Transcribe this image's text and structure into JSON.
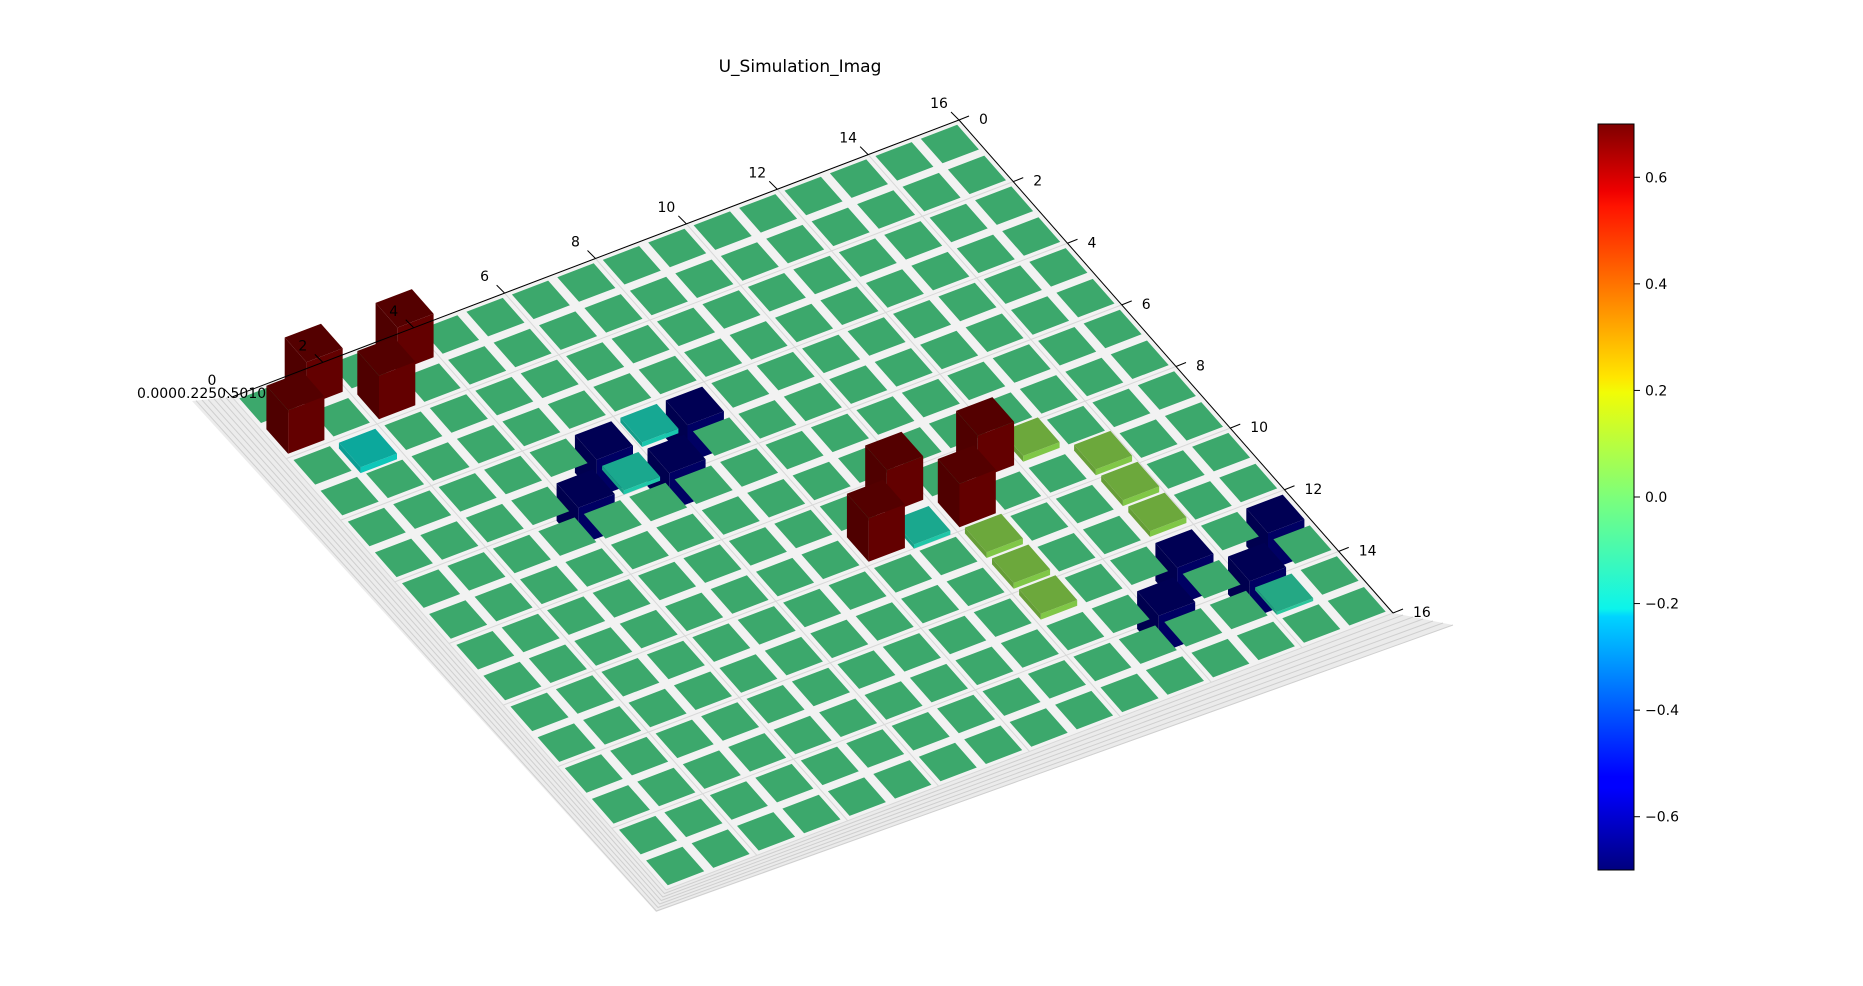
{
  "chart_data": {
    "type": "bar3d",
    "title": "U_Simulation_Imag",
    "xlabel": "",
    "ylabel": "",
    "zlabel": "",
    "grid_size": 16,
    "x_ticks": [
      "0",
      "2",
      "4",
      "6",
      "8",
      "10",
      "12",
      "14",
      "16"
    ],
    "y_ticks": [
      "0",
      "2",
      "4",
      "6",
      "8",
      "10",
      "12",
      "14",
      "16"
    ],
    "z_ticks_text": "0.0000.2250.5010",
    "colorbar": {
      "colormap": "jet",
      "vmin": -0.7,
      "vmax": 0.7,
      "ticks": [
        "0.6",
        "0.4",
        "0.2",
        "0.0",
        "−0.2",
        "−0.4",
        "−0.6"
      ],
      "tick_values": [
        0.6,
        0.4,
        0.2,
        0.0,
        -0.2,
        -0.4,
        -0.6
      ]
    },
    "baseline_value": -0.05,
    "nonzero_cells": [
      {
        "row": 0,
        "col": 1,
        "value": 0.7
      },
      {
        "row": 0,
        "col": 3,
        "value": 0.7
      },
      {
        "row": 1,
        "col": 0,
        "value": 0.7
      },
      {
        "row": 1,
        "col": 2,
        "value": 0.7
      },
      {
        "row": 2,
        "col": 1,
        "value": -0.15
      },
      {
        "row": 4,
        "col": 5,
        "value": -0.7
      },
      {
        "row": 4,
        "col": 7,
        "value": -0.7
      },
      {
        "row": 5,
        "col": 4,
        "value": -0.7
      },
      {
        "row": 5,
        "col": 6,
        "value": -0.7
      },
      {
        "row": 4,
        "col": 6,
        "value": -0.13
      },
      {
        "row": 5,
        "col": 5,
        "value": -0.12
      },
      {
        "row": 8,
        "col": 9,
        "value": 0.7
      },
      {
        "row": 8,
        "col": 11,
        "value": 0.7
      },
      {
        "row": 9,
        "col": 8,
        "value": 0.7
      },
      {
        "row": 9,
        "col": 10,
        "value": 0.7
      },
      {
        "row": 9,
        "col": 9,
        "value": -0.12
      },
      {
        "row": 8,
        "col": 12,
        "value": 0.05
      },
      {
        "row": 9,
        "col": 13,
        "value": 0.05
      },
      {
        "row": 10,
        "col": 13,
        "value": 0.05
      },
      {
        "row": 11,
        "col": 13,
        "value": 0.05
      },
      {
        "row": 12,
        "col": 13,
        "value": -0.7
      },
      {
        "row": 12,
        "col": 15,
        "value": -0.7
      },
      {
        "row": 13,
        "col": 12,
        "value": -0.7
      },
      {
        "row": 13,
        "col": 14,
        "value": -0.7
      },
      {
        "row": 14,
        "col": 14,
        "value": -0.1
      },
      {
        "row": 10,
        "col": 10,
        "value": 0.05
      },
      {
        "row": 11,
        "col": 10,
        "value": 0.05
      },
      {
        "row": 12,
        "col": 10,
        "value": 0.05
      }
    ]
  }
}
